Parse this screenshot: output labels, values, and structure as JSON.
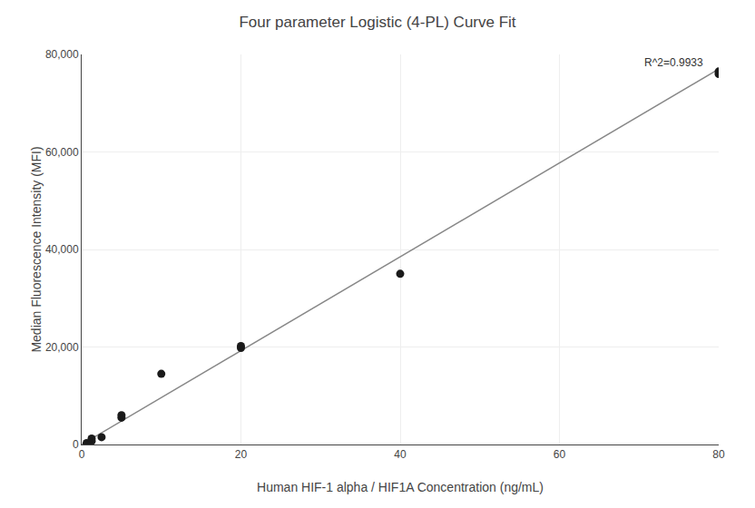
{
  "chart_data": {
    "type": "scatter",
    "title": "Four parameter Logistic (4-PL) Curve Fit",
    "xlabel": "Human HIF-1 alpha / HIF1A Concentration (ng/mL)",
    "ylabel": "Median Fluorescence Intensity (MFI)",
    "series": [
      {
        "type": "line",
        "color": "#888888",
        "x": [
          0,
          80
        ],
        "values": [
          0,
          77000
        ]
      },
      {
        "type": "scatter",
        "color": "#1a1a1a",
        "x": [
          0.625,
          1.25,
          1.25,
          2.5,
          5.0,
          5.0,
          10.0,
          20.0,
          20.0,
          40.0,
          80.0,
          80.0
        ],
        "values": [
          300,
          700,
          1200,
          1500,
          5500,
          6000,
          14500,
          19800,
          20200,
          35000,
          76000,
          76500
        ]
      }
    ],
    "annotations": [
      "R^2=0.9933"
    ],
    "xlim": [
      0,
      80
    ],
    "ylim": [
      0,
      80000
    ],
    "xticks": [
      0,
      20,
      40,
      60,
      80
    ],
    "yticks": [
      0,
      {
        "value": 20000,
        "label": "20,000"
      },
      {
        "value": 40000,
        "label": "40,000"
      },
      {
        "value": 60000,
        "label": "60,000"
      },
      {
        "value": 80000,
        "label": "80,000"
      }
    ],
    "grid": true
  }
}
